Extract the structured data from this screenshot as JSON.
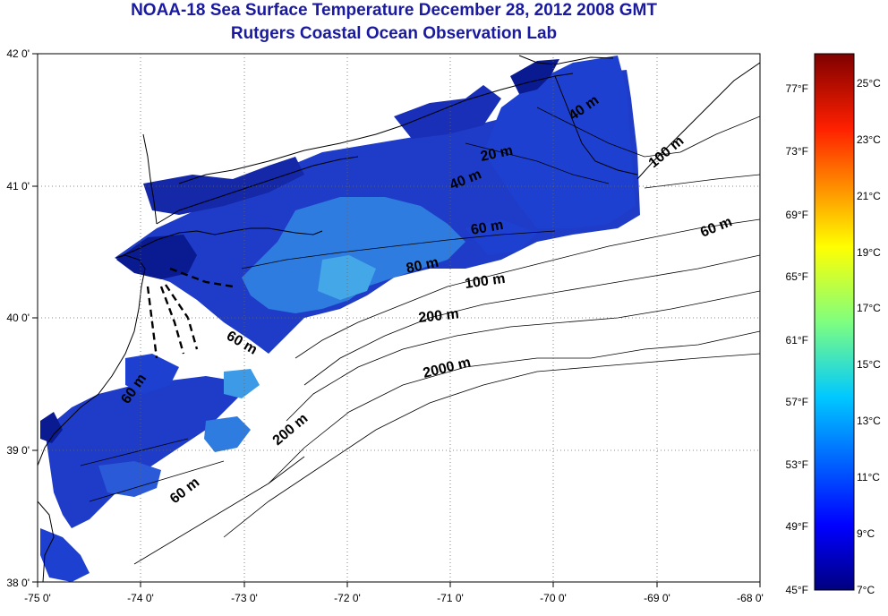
{
  "title": "NOAA-18 Sea Surface Temperature December 28, 2012 2008 GMT",
  "subtitle": "Rutgers Coastal Ocean Observation Lab",
  "axes": {
    "lon_ticks": [
      "-75 0'",
      "-74 0'",
      "-73 0'",
      "-72 0'",
      "-71 0'",
      "-70 0'",
      "-69 0'",
      "-68 0'"
    ],
    "lat_ticks": [
      "42 0'",
      "41 0'",
      "40 0'",
      "39 0'",
      "38 0'"
    ],
    "lon_range": [
      -75,
      -68
    ],
    "lat_range": [
      38,
      42
    ],
    "grid": "dotted"
  },
  "depth_labels": [
    "20 m",
    "40 m",
    "40 m",
    "100 m",
    "60 m",
    "60 m",
    "80 m",
    "100 m",
    "200 m",
    "60 m",
    "2000 m",
    "200 m",
    "60 m",
    "60 m"
  ],
  "colorbar": {
    "fahrenheit": [
      "77°F",
      "73°F",
      "69°F",
      "65°F",
      "61°F",
      "57°F",
      "53°F",
      "49°F",
      "45°F"
    ],
    "celsius": [
      "25°C",
      "23°C",
      "21°C",
      "19°C",
      "17°C",
      "15°C",
      "13°C",
      "11°C",
      "9°C",
      "7°C"
    ],
    "range_c": [
      7,
      26
    ]
  },
  "colors": {
    "title": "#1a1aa0",
    "land": "#ffffff",
    "cold": "#0a1a8c",
    "cool": "#1e50e6",
    "mid": "#3c9ae6"
  }
}
